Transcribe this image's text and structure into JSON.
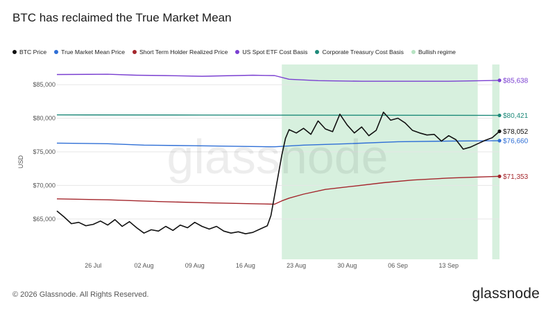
{
  "title": "BTC has reclaimed the True Market Mean",
  "footer": "© 2026 Glassnode. All Rights Reserved.",
  "brand": "glassnode",
  "watermark": "glassnode",
  "legend": [
    {
      "label": "BTC Price",
      "color": "#111111"
    },
    {
      "label": "True Market Mean Price",
      "color": "#2f6fd6"
    },
    {
      "label": "Short Term Holder Realized Price",
      "color": "#a4262c"
    },
    {
      "label": "US Spot ETF Cost Basis",
      "color": "#7a3fd1"
    },
    {
      "label": "Corporate Treasury Cost Basis",
      "color": "#1f8a7a"
    },
    {
      "label": "Bullish regime",
      "color": "#b7e3c3"
    }
  ],
  "chart_data": {
    "type": "line",
    "ylabel": "USD",
    "ylim": [
      59000,
      88000
    ],
    "yticks": [
      {
        "value": 65000,
        "label": "$65,000"
      },
      {
        "value": 70000,
        "label": "$70,000"
      },
      {
        "value": 75000,
        "label": "$75,000"
      },
      {
        "value": 80000,
        "label": "$80,000"
      },
      {
        "value": 85000,
        "label": "$85,000"
      }
    ],
    "xrange": [
      "2025-07-21",
      "2025-09-20"
    ],
    "xticks": [
      {
        "date": "2025-07-26",
        "label": "26 Jul"
      },
      {
        "date": "2025-08-02",
        "label": "02 Aug"
      },
      {
        "date": "2025-08-09",
        "label": "09 Aug"
      },
      {
        "date": "2025-08-16",
        "label": "16 Aug"
      },
      {
        "date": "2025-08-23",
        "label": "23 Aug"
      },
      {
        "date": "2025-08-30",
        "label": "30 Aug"
      },
      {
        "date": "2025-09-06",
        "label": "06 Sep"
      },
      {
        "date": "2025-09-13",
        "label": "13 Sep"
      }
    ],
    "bullish_regime": [
      {
        "start": "2025-08-21",
        "end": "2025-09-17"
      },
      {
        "start": "2025-09-19",
        "end": "2025-09-20"
      }
    ],
    "series": [
      {
        "name": "US Spot ETF Cost Basis",
        "color": "#7a3fd1",
        "end_label": "$85,638",
        "points": [
          [
            "2025-07-21",
            86500
          ],
          [
            "2025-07-28",
            86550
          ],
          [
            "2025-08-01",
            86400
          ],
          [
            "2025-08-05",
            86350
          ],
          [
            "2025-08-10",
            86250
          ],
          [
            "2025-08-17",
            86400
          ],
          [
            "2025-08-20",
            86350
          ],
          [
            "2025-08-22",
            85800
          ],
          [
            "2025-08-26",
            85600
          ],
          [
            "2025-09-01",
            85500
          ],
          [
            "2025-09-08",
            85500
          ],
          [
            "2025-09-13",
            85500
          ],
          [
            "2025-09-18",
            85600
          ],
          [
            "2025-09-20",
            85638
          ]
        ]
      },
      {
        "name": "Corporate Treasury Cost Basis",
        "color": "#1f8a7a",
        "end_label": "$80,421",
        "points": [
          [
            "2025-07-21",
            80500
          ],
          [
            "2025-08-10",
            80480
          ],
          [
            "2025-08-30",
            80450
          ],
          [
            "2025-09-20",
            80421
          ]
        ]
      },
      {
        "name": "True Market Mean Price",
        "color": "#2f6fd6",
        "end_label": "$76,660",
        "points": [
          [
            "2025-07-21",
            76300
          ],
          [
            "2025-07-28",
            76200
          ],
          [
            "2025-08-02",
            76000
          ],
          [
            "2025-08-09",
            75900
          ],
          [
            "2025-08-16",
            75800
          ],
          [
            "2025-08-20",
            75750
          ],
          [
            "2025-08-24",
            76000
          ],
          [
            "2025-08-30",
            76200
          ],
          [
            "2025-09-06",
            76500
          ],
          [
            "2025-09-13",
            76600
          ],
          [
            "2025-09-20",
            76660
          ]
        ]
      },
      {
        "name": "Short Term Holder Realized Price",
        "color": "#a4262c",
        "end_label": "$71,353",
        "points": [
          [
            "2025-07-21",
            68000
          ],
          [
            "2025-07-28",
            67850
          ],
          [
            "2025-08-04",
            67600
          ],
          [
            "2025-08-11",
            67400
          ],
          [
            "2025-08-18",
            67250
          ],
          [
            "2025-08-20",
            67200
          ],
          [
            "2025-08-21",
            67700
          ],
          [
            "2025-08-22",
            68100
          ],
          [
            "2025-08-24",
            68700
          ],
          [
            "2025-08-27",
            69400
          ],
          [
            "2025-08-31",
            69900
          ],
          [
            "2025-09-04",
            70400
          ],
          [
            "2025-09-08",
            70800
          ],
          [
            "2025-09-13",
            71100
          ],
          [
            "2025-09-20",
            71353
          ]
        ]
      },
      {
        "name": "BTC Price",
        "color": "#111111",
        "end_label": "$78,052",
        "points": [
          [
            "2025-07-21",
            66200
          ],
          [
            "2025-07-22",
            65300
          ],
          [
            "2025-07-23",
            64300
          ],
          [
            "2025-07-24",
            64500
          ],
          [
            "2025-07-25",
            64000
          ],
          [
            "2025-07-26",
            64200
          ],
          [
            "2025-07-27",
            64700
          ],
          [
            "2025-07-28",
            64100
          ],
          [
            "2025-07-29",
            64900
          ],
          [
            "2025-07-30",
            63900
          ],
          [
            "2025-07-31",
            64600
          ],
          [
            "2025-08-01",
            63700
          ],
          [
            "2025-08-02",
            62900
          ],
          [
            "2025-08-03",
            63400
          ],
          [
            "2025-08-04",
            63200
          ],
          [
            "2025-08-05",
            63900
          ],
          [
            "2025-08-06",
            63300
          ],
          [
            "2025-08-07",
            64100
          ],
          [
            "2025-08-08",
            63700
          ],
          [
            "2025-08-09",
            64500
          ],
          [
            "2025-08-10",
            63900
          ],
          [
            "2025-08-11",
            63500
          ],
          [
            "2025-08-12",
            63900
          ],
          [
            "2025-08-13",
            63200
          ],
          [
            "2025-08-14",
            62900
          ],
          [
            "2025-08-15",
            63100
          ],
          [
            "2025-08-16",
            62800
          ],
          [
            "2025-08-17",
            63000
          ],
          [
            "2025-08-18",
            63500
          ],
          [
            "2025-08-19",
            64000
          ],
          [
            "2025-08-19.5",
            65500
          ],
          [
            "2025-08-20",
            68500
          ],
          [
            "2025-08-20.5",
            71500
          ],
          [
            "2025-08-21",
            74500
          ],
          [
            "2025-08-21.5",
            77000
          ],
          [
            "2025-08-22",
            78300
          ],
          [
            "2025-08-23",
            77800
          ],
          [
            "2025-08-24",
            78500
          ],
          [
            "2025-08-25",
            77600
          ],
          [
            "2025-08-26",
            79600
          ],
          [
            "2025-08-27",
            78400
          ],
          [
            "2025-08-28",
            78000
          ],
          [
            "2025-08-29",
            80600
          ],
          [
            "2025-08-30",
            79000
          ],
          [
            "2025-08-31",
            77800
          ],
          [
            "2025-09-01",
            78700
          ],
          [
            "2025-09-02",
            77400
          ],
          [
            "2025-09-03",
            78200
          ],
          [
            "2025-09-04",
            80900
          ],
          [
            "2025-09-05",
            79700
          ],
          [
            "2025-09-06",
            80000
          ],
          [
            "2025-09-07",
            79300
          ],
          [
            "2025-09-08",
            78200
          ],
          [
            "2025-09-09",
            77800
          ],
          [
            "2025-09-10",
            77500
          ],
          [
            "2025-09-11",
            77600
          ],
          [
            "2025-09-12",
            76600
          ],
          [
            "2025-09-13",
            77400
          ],
          [
            "2025-09-14",
            76800
          ],
          [
            "2025-09-15",
            75400
          ],
          [
            "2025-09-16",
            75700
          ],
          [
            "2025-09-17",
            76200
          ],
          [
            "2025-09-18",
            76700
          ],
          [
            "2025-09-19",
            77100
          ],
          [
            "2025-09-20",
            78052
          ]
        ]
      }
    ]
  }
}
